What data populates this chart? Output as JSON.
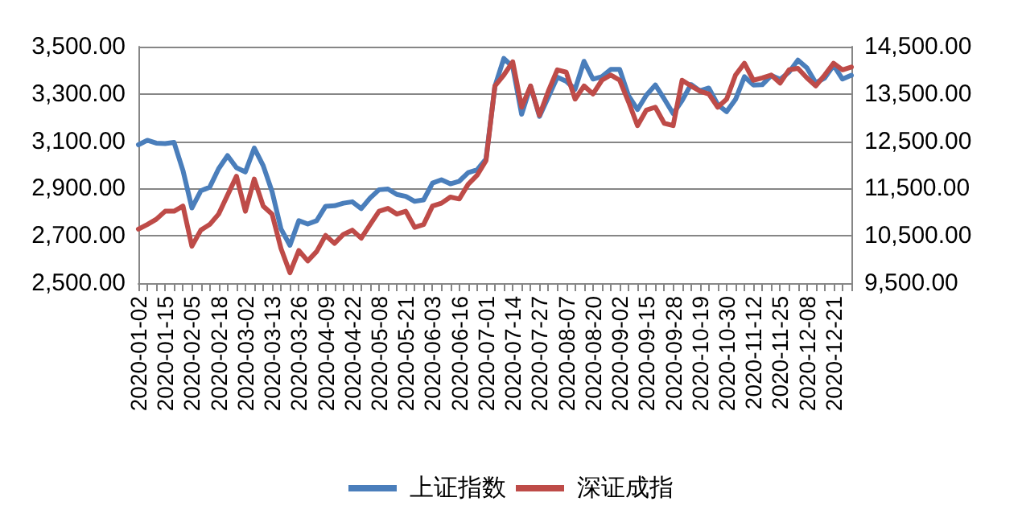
{
  "chart_data": {
    "type": "line",
    "categories": [
      "2020-01-02",
      null,
      null,
      "2020-01-15",
      null,
      null,
      "2020-02-05",
      null,
      null,
      "2020-02-18",
      null,
      null,
      "2020-03-02",
      null,
      null,
      "2020-03-13",
      null,
      null,
      "2020-03-26",
      null,
      null,
      "2020-04-09",
      null,
      null,
      "2020-04-22",
      null,
      null,
      "2020-05-08",
      null,
      null,
      "2020-05-21",
      null,
      null,
      "2020-06-03",
      null,
      null,
      "2020-06-16",
      null,
      null,
      "2020-07-01",
      null,
      null,
      "2020-07-14",
      null,
      null,
      "2020-07-27",
      null,
      null,
      "2020-08-07",
      null,
      null,
      "2020-08-20",
      null,
      null,
      "2020-09-02",
      null,
      null,
      "2020-09-15",
      null,
      null,
      "2020-09-28",
      null,
      null,
      "2020-10-19",
      null,
      null,
      "2020-10-30",
      null,
      null,
      "2020-11-12",
      null,
      null,
      "2020-11-25",
      null,
      null,
      "2020-12-08",
      null,
      null,
      "2020-12-21",
      null,
      null
    ],
    "series": [
      {
        "name": "上证指数",
        "color": "#4a7ebb",
        "values": [
          3085,
          3104,
          3092,
          3090,
          3095,
          2976,
          2818,
          2890,
          2906,
          2984,
          3039,
          2988,
          2970,
          3071,
          2997,
          2887,
          2729,
          2660,
          2764,
          2750,
          2764,
          2825,
          2827,
          2838,
          2844,
          2815,
          2860,
          2895,
          2898,
          2875,
          2867,
          2846,
          2852,
          2923,
          2937,
          2920,
          2931,
          2967,
          2979,
          3025,
          3332,
          3450,
          3415,
          3214,
          3333,
          3205,
          3287,
          3371,
          3354,
          3320,
          3438,
          3363,
          3373,
          3404,
          3404,
          3292,
          3234,
          3295,
          3338,
          3279,
          3217,
          3272,
          3340,
          3313,
          3325,
          3255,
          3225,
          3277,
          3373,
          3338,
          3339,
          3378,
          3362,
          3392,
          3443,
          3411,
          3347,
          3367,
          3421,
          3363,
          3379
        ]
      },
      {
        "name": "深证成指",
        "color": "#be4b48",
        "axis": "y2",
        "values": [
          10640,
          10740,
          10850,
          11020,
          11020,
          11130,
          10280,
          10620,
          10740,
          10960,
          11360,
          11760,
          11020,
          11700,
          11130,
          10960,
          10230,
          9720,
          10190,
          9970,
          10170,
          10510,
          10340,
          10530,
          10620,
          10450,
          10740,
          11020,
          11080,
          10960,
          11020,
          10680,
          10740,
          11130,
          11190,
          11320,
          11280,
          11590,
          11780,
          12090,
          13670,
          13900,
          14180,
          13220,
          13670,
          13050,
          13560,
          14010,
          13960,
          13390,
          13670,
          13500,
          13790,
          13900,
          13790,
          13330,
          12830,
          13160,
          13220,
          12880,
          12830,
          13790,
          13670,
          13560,
          13500,
          13220,
          13390,
          13900,
          14150,
          13790,
          13840,
          13900,
          13730,
          14010,
          14040,
          13840,
          13670,
          13900,
          14150,
          14010,
          14070
        ]
      }
    ],
    "ylim": [
      2500,
      3500
    ],
    "yticks": [
      {
        "value": 2500,
        "label": "2,500.00"
      },
      {
        "value": 2700,
        "label": "2,700.00"
      },
      {
        "value": 2900,
        "label": "2,900.00"
      },
      {
        "value": 3100,
        "label": "3,100.00"
      },
      {
        "value": 3300,
        "label": "3,300.00"
      },
      {
        "value": 3500,
        "label": "3,500.00"
      }
    ],
    "y2lim": [
      9500,
      14500
    ],
    "y2ticks": [
      {
        "value": 9500,
        "label": "9,500.00"
      },
      {
        "value": 10500,
        "label": "10,500.00"
      },
      {
        "value": 11500,
        "label": "11,500.00"
      },
      {
        "value": 12500,
        "label": "12,500.00"
      },
      {
        "value": 13500,
        "label": "13,500.00"
      },
      {
        "value": 14500,
        "label": "14,500.00"
      }
    ],
    "grid": "y",
    "legend": "bottom",
    "marker": "none",
    "line_style": "solid"
  }
}
